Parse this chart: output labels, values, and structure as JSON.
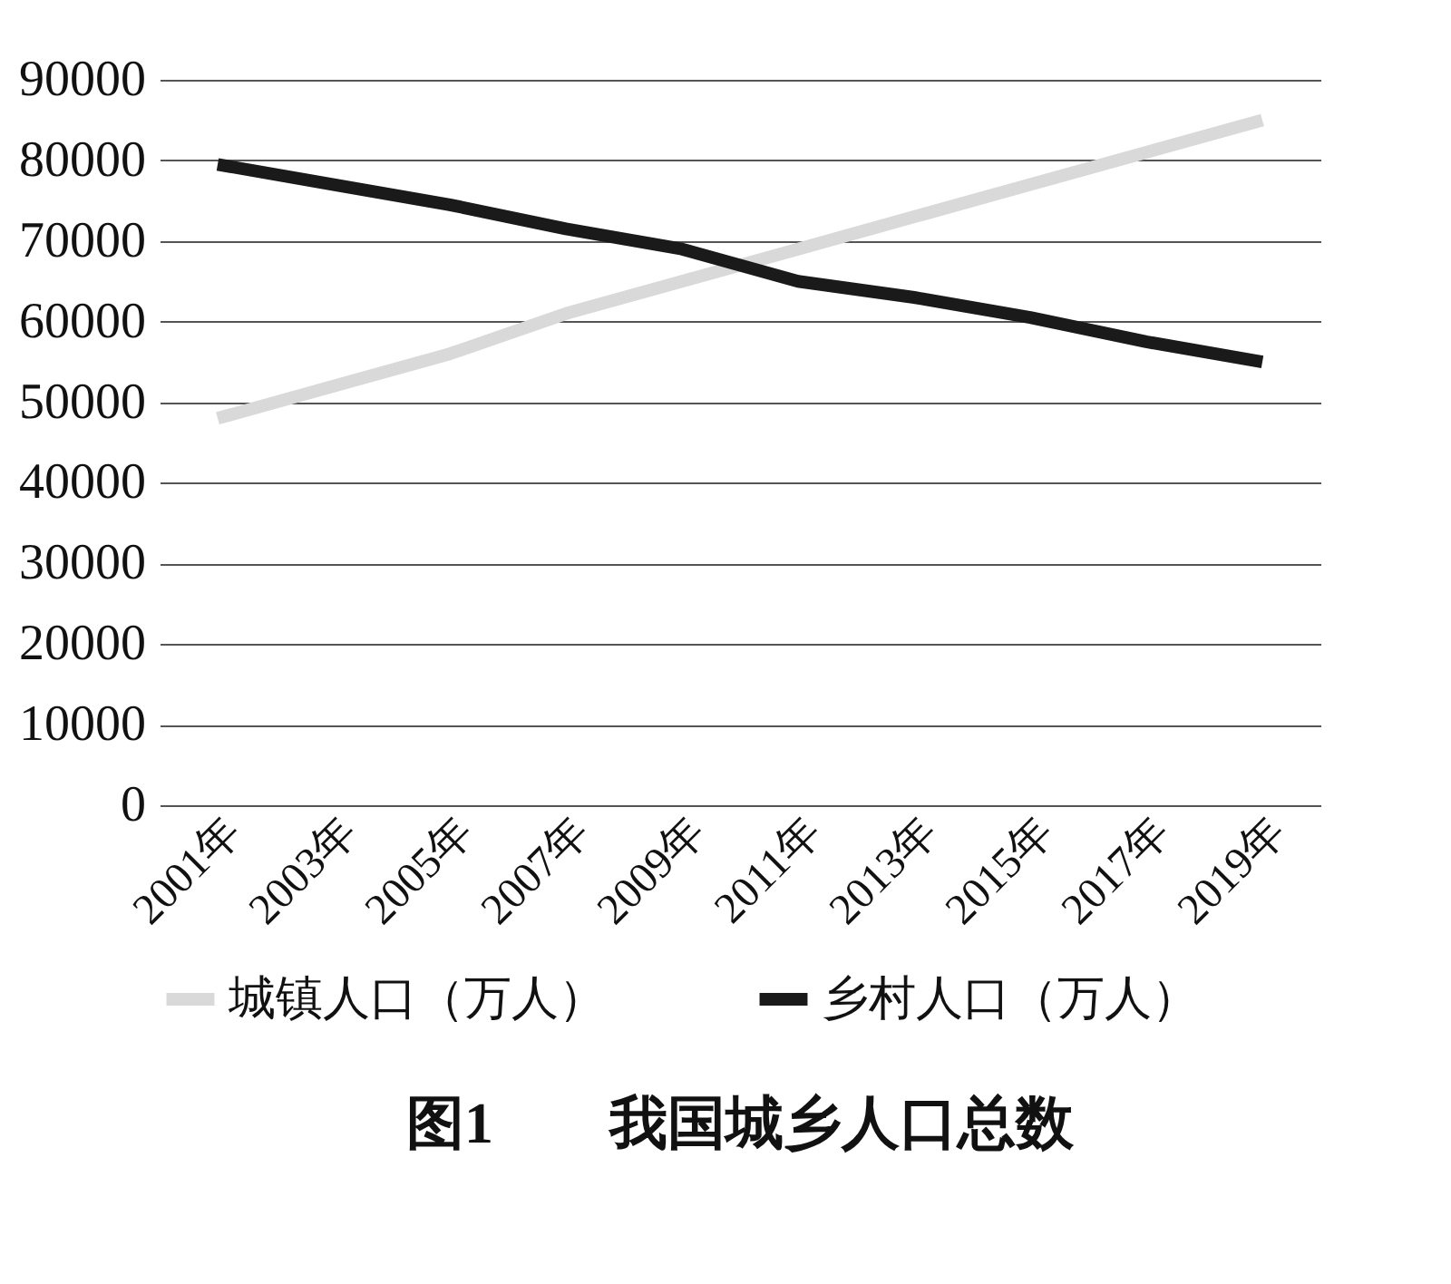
{
  "chart_data": {
    "type": "line",
    "title": "图1　　我国城乡人口总数",
    "categories": [
      "2001年",
      "2003年",
      "2005年",
      "2007年",
      "2009年",
      "2011年",
      "2013年",
      "2015年",
      "2017年",
      "2019年"
    ],
    "series": [
      {
        "name": "城镇人口（万人）",
        "color": "#d9d9d9",
        "values": [
          48000,
          52000,
          56000,
          61000,
          65000,
          69000,
          73000,
          77000,
          81000,
          85000
        ]
      },
      {
        "name": "乡村人口（万人）",
        "color": "#1a1a1a",
        "values": [
          79500,
          77000,
          74500,
          71500,
          69000,
          65000,
          63000,
          60500,
          57500,
          55000
        ]
      }
    ],
    "ylim": [
      0,
      90000
    ],
    "yticks": [
      0,
      10000,
      20000,
      30000,
      40000,
      50000,
      60000,
      70000,
      80000,
      90000
    ],
    "grid": "y",
    "legend": "bottom",
    "marker": "none",
    "line_style": "solid"
  }
}
